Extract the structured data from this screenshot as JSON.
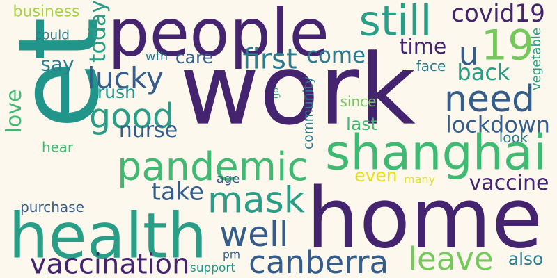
{
  "colors": {
    "background": "#fcf8ee",
    "deep_purple": "#45246f",
    "dark_blue": "#345d8c",
    "teal_blue": "#2c7b8e",
    "teal": "#22958a",
    "green_teal": "#2a9d86",
    "green": "#3fba72",
    "light_green": "#74c95a",
    "lime": "#a8d13d",
    "yellow": "#e6e01f"
  },
  "words": [
    {
      "text": "work",
      "color": "deep_purple",
      "vertical": false
    },
    {
      "text": "home",
      "color": "deep_purple",
      "vertical": false
    },
    {
      "text": "people",
      "color": "deep_purple",
      "vertical": false
    },
    {
      "text": "et",
      "color": "teal",
      "vertical": true
    },
    {
      "text": "go",
      "color": "green_teal",
      "vertical": true
    },
    {
      "text": "shanghai",
      "color": "green",
      "vertical": false
    },
    {
      "text": "health",
      "color": "green_teal",
      "vertical": false
    },
    {
      "text": "pandemic",
      "color": "green",
      "vertical": false
    },
    {
      "text": "need",
      "color": "dark_blue",
      "vertical": false
    },
    {
      "text": "good",
      "color": "green_teal",
      "vertical": false
    },
    {
      "text": "still",
      "color": "green_teal",
      "vertical": false
    },
    {
      "text": "19",
      "color": "light_green",
      "vertical": false
    },
    {
      "text": "mask",
      "color": "green_teal",
      "vertical": false
    },
    {
      "text": "canberra",
      "color": "dark_blue",
      "vertical": false
    },
    {
      "text": "vaccination",
      "color": "deep_purple",
      "vertical": false
    },
    {
      "text": "well",
      "color": "dark_blue",
      "vertical": false
    },
    {
      "text": "leave",
      "color": "light_green",
      "vertical": false
    },
    {
      "text": "u",
      "color": "dark_blue",
      "vertical": false
    },
    {
      "text": "first",
      "color": "teal_blue",
      "vertical": false
    },
    {
      "text": "lucky",
      "color": "dark_blue",
      "vertical": false
    },
    {
      "text": "covid19",
      "color": "deep_purple",
      "vertical": false
    },
    {
      "text": "nurse",
      "color": "dark_blue",
      "vertical": false
    },
    {
      "text": "lockdown",
      "color": "dark_blue",
      "vertical": false
    },
    {
      "text": "take",
      "color": "dark_blue",
      "vertical": false
    },
    {
      "text": "vaccine",
      "color": "deep_purple",
      "vertical": false
    },
    {
      "text": "come",
      "color": "teal_blue",
      "vertical": false
    },
    {
      "text": "back",
      "color": "green_teal",
      "vertical": false
    },
    {
      "text": "time",
      "color": "deep_purple",
      "vertical": false
    },
    {
      "text": "love",
      "color": "green",
      "vertical": true
    },
    {
      "text": "today",
      "color": "green_teal",
      "vertical": true
    },
    {
      "text": "care",
      "color": "dark_blue",
      "vertical": false
    },
    {
      "text": "say",
      "color": "teal_blue",
      "vertical": false
    },
    {
      "text": "rush",
      "color": "teal",
      "vertical": false
    },
    {
      "text": "business",
      "color": "lime",
      "vertical": false
    },
    {
      "text": "even",
      "color": "yellow",
      "vertical": false
    },
    {
      "text": "last",
      "color": "green",
      "vertical": false
    },
    {
      "text": "also",
      "color": "teal_blue",
      "vertical": false
    },
    {
      "text": "since",
      "color": "light_green",
      "vertical": false
    },
    {
      "text": "could",
      "color": "teal_blue",
      "vertical": false
    },
    {
      "text": "wfh",
      "color": "teal_blue",
      "vertical": false
    },
    {
      "text": "face",
      "color": "teal_blue",
      "vertical": false
    },
    {
      "text": "vegetable",
      "color": "green_teal",
      "vertical": true
    },
    {
      "text": "community",
      "color": "teal_blue",
      "vertical": true
    },
    {
      "text": "look",
      "color": "teal_blue",
      "vertical": false
    },
    {
      "text": "hear",
      "color": "green",
      "vertical": false
    },
    {
      "text": "age",
      "color": "dark_blue",
      "vertical": false
    },
    {
      "text": "many",
      "color": "yellow",
      "vertical": false
    },
    {
      "text": "purchase",
      "color": "dark_blue",
      "vertical": false
    },
    {
      "text": "support",
      "color": "teal",
      "vertical": false
    },
    {
      "text": "pm",
      "color": "dark_blue",
      "vertical": false
    }
  ]
}
